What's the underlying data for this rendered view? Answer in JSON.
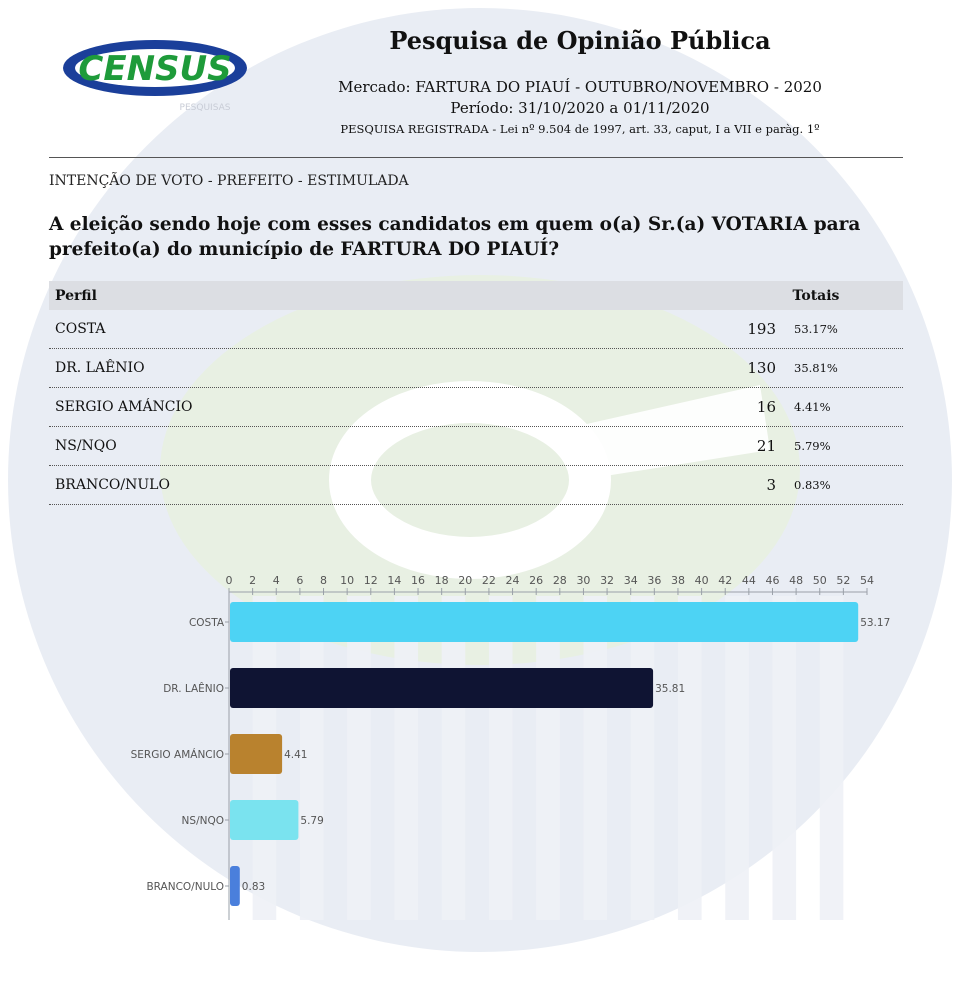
{
  "header": {
    "logo_text": "CENSUS",
    "logo_subtext": "PESQUISAS",
    "title": "Pesquisa de Opinião Pública",
    "mercado": "Mercado: FARTURA DO PIAUÍ - OUTUBRO/NOVEMBRO - 2020",
    "periodo": "Período: 31/10/2020 a 01/11/2020",
    "registro": "PESQUISA REGISTRADA - Lei nº 9.504 de 1997, art. 33, caput, I a VII e paràg. 1º"
  },
  "section_label": "INTENÇÃO DE VOTO - PREFEITO - ESTIMULADA",
  "question": "A eleição sendo hoje com esses candidatos em quem o(a) Sr.(a) VOTARIA para prefeito(a) do município de FARTURA DO PIAUÍ?",
  "table": {
    "col_perfil": "Perfil",
    "col_totais": "Totais",
    "rows": [
      {
        "name": "COSTA",
        "count": "193",
        "pct": "53.17%"
      },
      {
        "name": "DR. LAÊNIO",
        "count": "130",
        "pct": "35.81%"
      },
      {
        "name": "SERGIO AMÁNCIO",
        "count": "16",
        "pct": "4.41%"
      },
      {
        "name": "NS/NQO",
        "count": "21",
        "pct": "5.79%"
      },
      {
        "name": "BRANCO/NULO",
        "count": "3",
        "pct": "0.83%"
      }
    ]
  },
  "chart_data": {
    "type": "bar",
    "orientation": "horizontal",
    "categories": [
      "COSTA",
      "DR. LAÊNIO",
      "SERGIO AMÁNCIO",
      "NS/NQO",
      "BRANCO/NULO"
    ],
    "values": [
      53.17,
      35.81,
      4.41,
      5.79,
      0.83
    ],
    "value_labels": [
      "53.17",
      "35.81",
      "4.41",
      "5.79",
      "0.83"
    ],
    "colors": [
      "#4dd3f4",
      "#0f1433",
      "#b9822e",
      "#7ae3ef",
      "#4a7fdc"
    ],
    "xlim": [
      0,
      54
    ],
    "xticks": [
      0,
      2,
      4,
      6,
      8,
      10,
      12,
      14,
      16,
      18,
      20,
      22,
      24,
      26,
      28,
      30,
      32,
      34,
      36,
      38,
      40,
      42,
      44,
      46,
      48,
      50,
      52,
      54
    ],
    "axis_position": "top",
    "grid": "vertical stripes"
  }
}
